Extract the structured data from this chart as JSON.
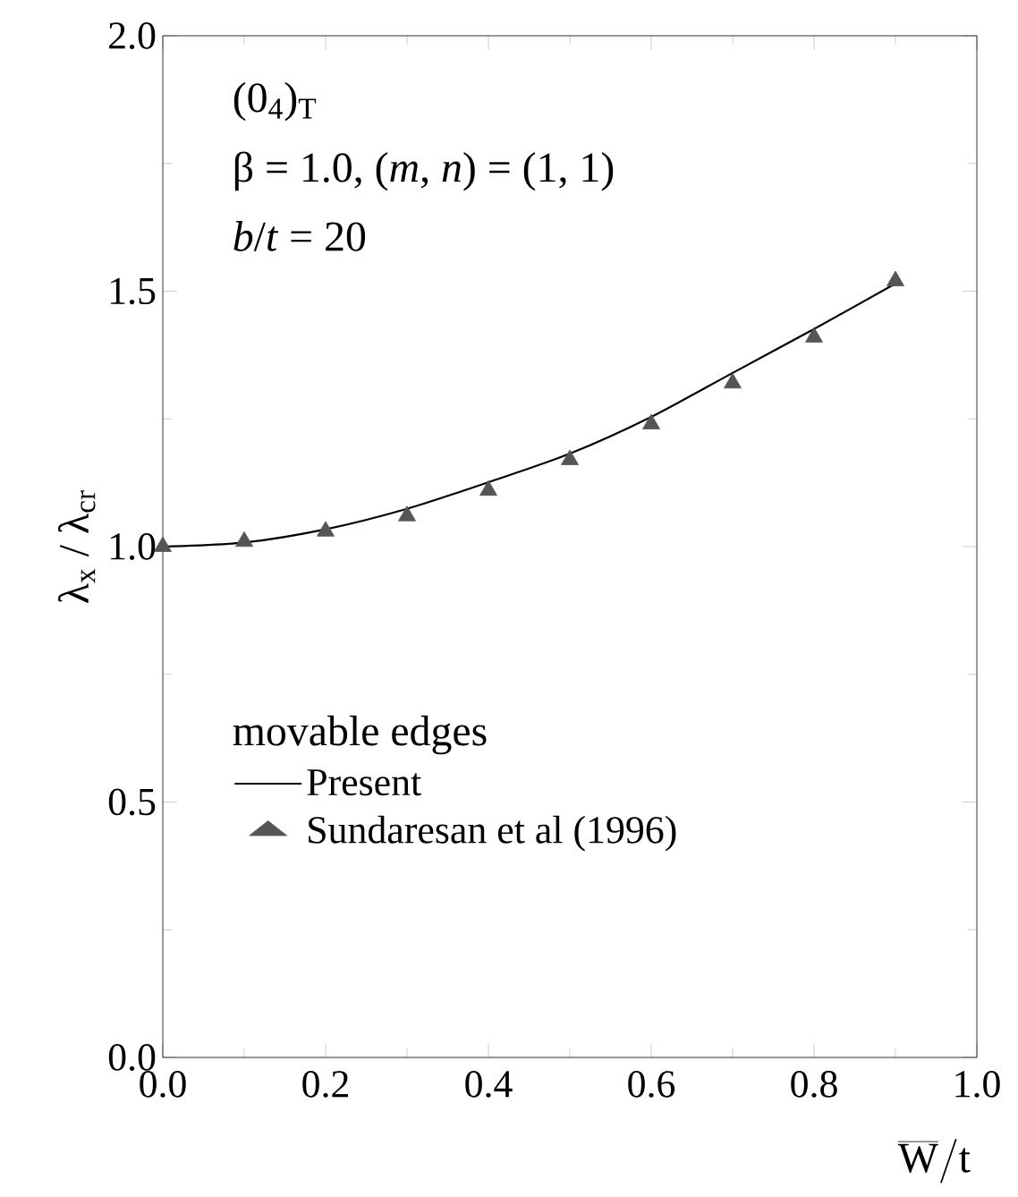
{
  "chart_data": {
    "type": "line",
    "xlabel": "\\overline{\\mathrm{W}}/\\mathrm{t}",
    "ylabel": "λ$_{x}$ / λ$_{cr}$",
    "annotations": [
      "(0$_{4}$)$_{T}$",
      "β = 1.0, (*m*, *n*) = (1, 1)",
      "*b*/*t* = 20",
      "movable edges"
    ],
    "xlim": [
      0,
      1.0
    ],
    "ylim": [
      0,
      2.0
    ],
    "xticks": [
      {
        "value": 0,
        "label": "0.0"
      },
      0.2,
      0.4,
      0.6,
      0.8,
      {
        "value": 1.0,
        "label": "1.0"
      }
    ],
    "yticks": [
      {
        "value": 0,
        "label": "0.0"
      },
      0.5,
      {
        "value": 1.0,
        "label": "1.0"
      },
      1.5,
      {
        "value": 2.0,
        "label": "2.0"
      }
    ],
    "legend": "bottom left",
    "series": [
      {
        "name": "Present",
        "type": "line",
        "color": "#000000",
        "marker": "none",
        "line_style": "solid",
        "x": [
          0,
          0.1,
          0.2,
          0.3,
          0.4,
          0.5,
          0.6,
          0.7,
          0.8,
          0.9
        ],
        "values": [
          1.0,
          1.008,
          1.034,
          1.074,
          1.126,
          1.182,
          1.254,
          1.34,
          1.426,
          1.515
        ]
      },
      {
        "name": "Sundaresan et al (1996)",
        "type": "scatter",
        "color": "#555555",
        "marker": "triangle",
        "x": [
          0,
          0.1,
          0.2,
          0.3,
          0.4,
          0.5,
          0.6,
          0.7,
          0.8,
          0.9
        ],
        "values": [
          1.0,
          1.01,
          1.03,
          1.06,
          1.11,
          1.17,
          1.24,
          1.32,
          1.41,
          1.52
        ]
      }
    ]
  }
}
